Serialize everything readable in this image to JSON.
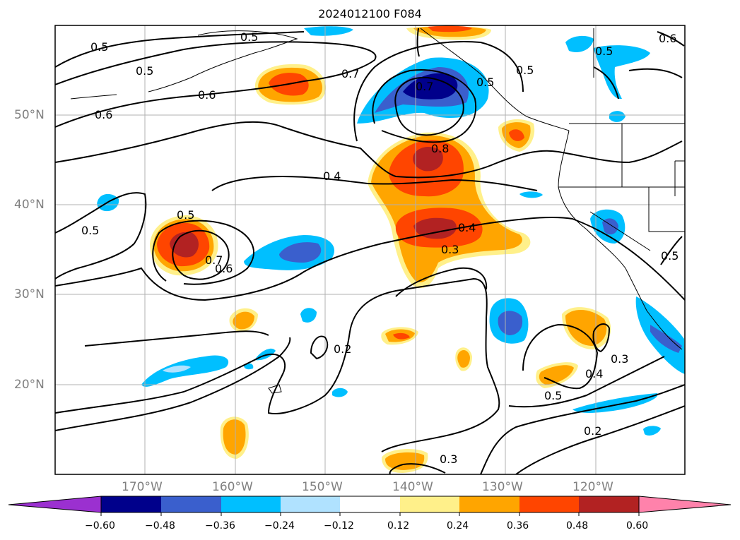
{
  "title": "2024012100 F084",
  "map": {
    "lat_labels": [
      "50°N",
      "40°N",
      "30°N",
      "20°N"
    ],
    "lon_labels": [
      "170°W",
      "160°W",
      "150°W",
      "140°W",
      "130°W",
      "120°W"
    ],
    "contour_labels": [
      "0.5",
      "0.5",
      "0.6",
      "0.6",
      "0.7",
      "0.7",
      "0.5",
      "0.5",
      "0.4",
      "0.8",
      "0.4",
      "0.3",
      "0.5",
      "0.7",
      "0.6",
      "0.5",
      "0.2",
      "0.3",
      "0.4",
      "0.5",
      "0.2",
      "0.3",
      "0.5",
      "0.5",
      "0.6",
      "0.5"
    ]
  },
  "colorbar": {
    "ticks": [
      "−0.60",
      "−0.48",
      "−0.36",
      "−0.24",
      "−0.12",
      "0.12",
      "0.24",
      "0.36",
      "0.48",
      "0.60"
    ],
    "colors": [
      "#9b30d0",
      "#00008b",
      "#3a5fcd",
      "#00bfff",
      "#b0e2ff",
      "#ffffff",
      "#fff08a",
      "#ffa500",
      "#ff4500",
      "#b22222",
      "#ff82ab"
    ]
  }
}
